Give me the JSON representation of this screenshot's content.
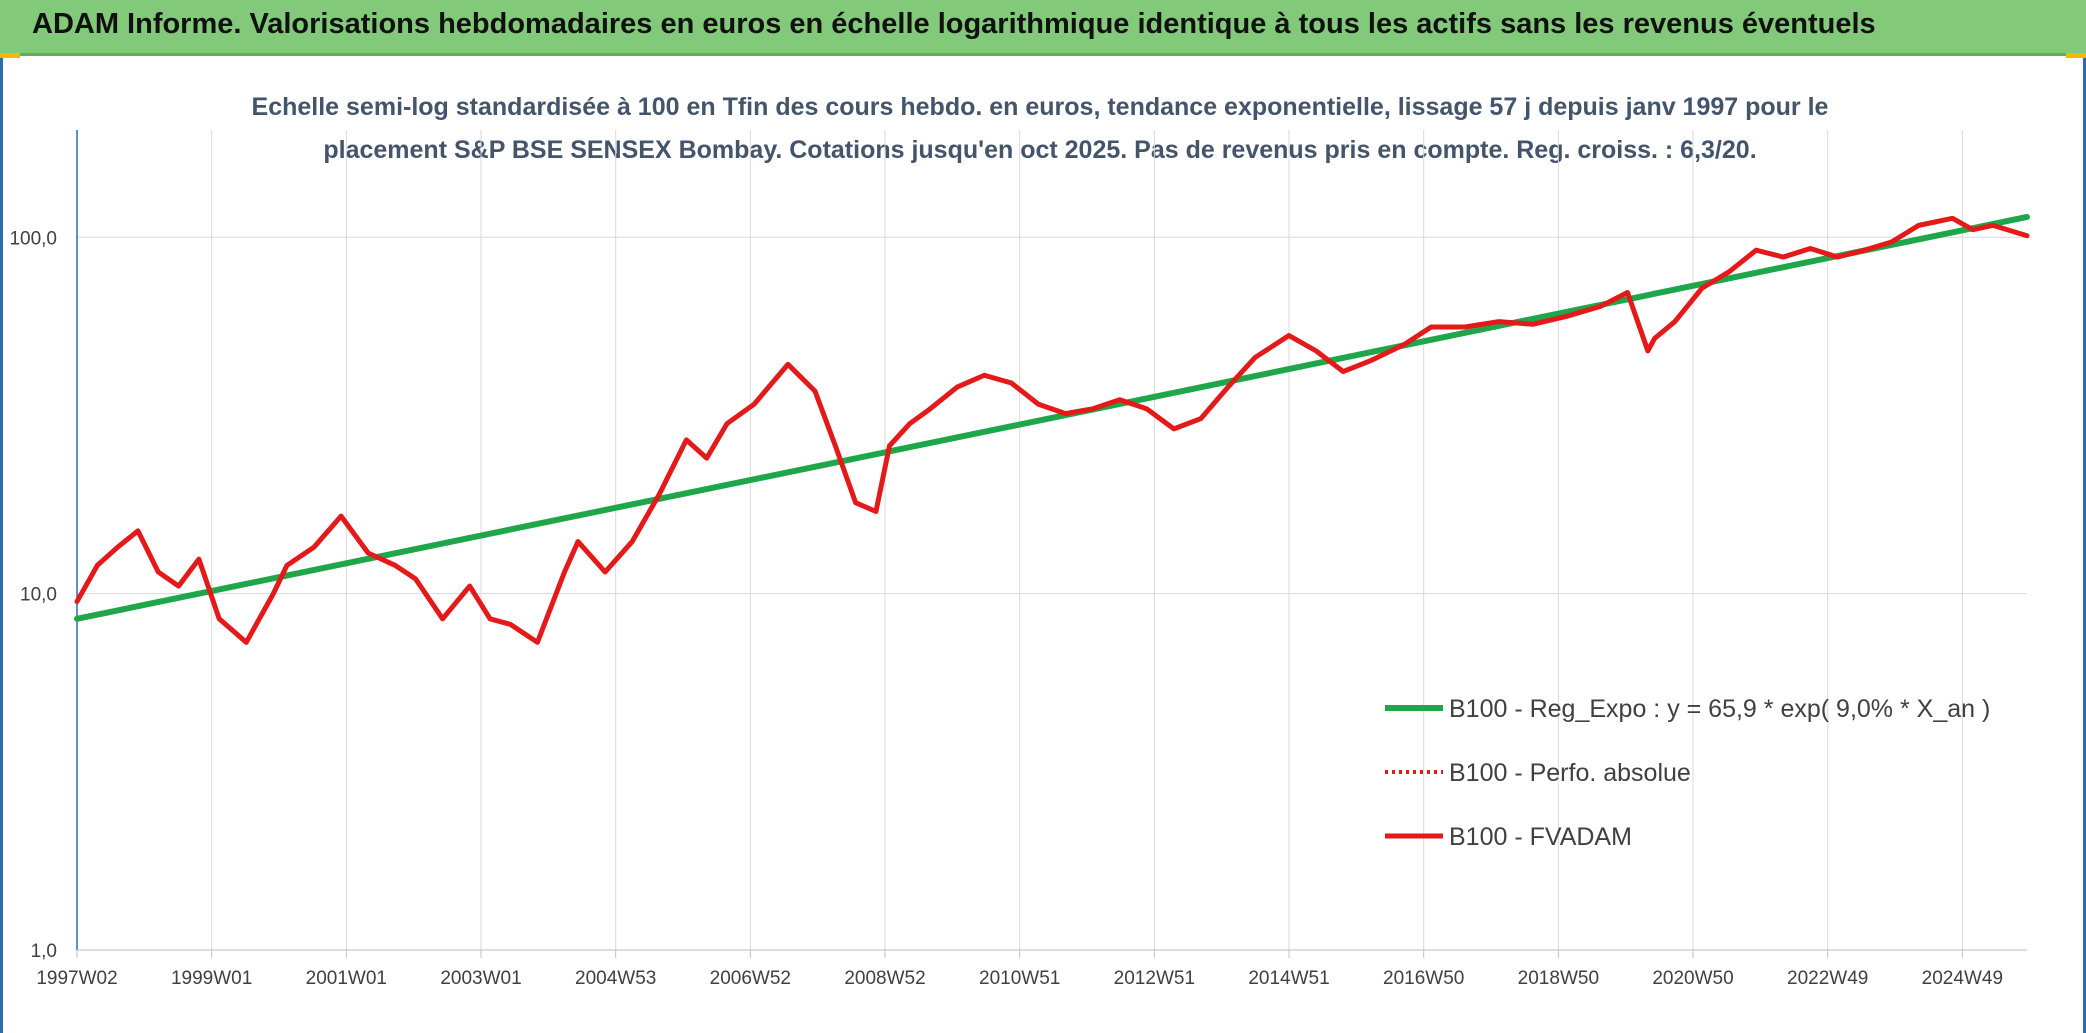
{
  "header": {
    "title": "ADAM Informe. Valorisations hebdomadaires en euros en échelle logarithmique identique à tous les actifs sans les revenus éventuels"
  },
  "colors": {
    "header_bg": "#82c97a",
    "trend": "#1fa64a",
    "perf": "#e41a1a",
    "fvadam": "#e41a1a",
    "grid": "#d9d9d9",
    "subtitle": "#44546a"
  },
  "chart_data": {
    "type": "line",
    "subtitle": [
      "Echelle semi-log standardisée à 100 en Tfin des cours hebdo. en euros, tendance exponentielle, lissage 57 j depuis janv 1997 pour le",
      "placement S&P BSE SENSEX Bombay. Cotations jusqu'en oct 2025. Pas de revenus pris en compte. Reg. croiss. : 6,3/20."
    ],
    "y_scale": "log",
    "ylim": [
      1,
      200
    ],
    "y_ticks": [
      "1,0",
      "10,0",
      "100,0"
    ],
    "x_ticks": [
      "1997W02",
      "1999W01",
      "2001W01",
      "2003W01",
      "2004W53",
      "2006W52",
      "2008W52",
      "2010W51",
      "2012W51",
      "2014W51",
      "2016W50",
      "2018W50",
      "2020W50",
      "2022W49",
      "2024W49"
    ],
    "x_range_years": [
      1997.0,
      2025.8
    ],
    "grid": true,
    "legend_position": "bottom-right",
    "series": [
      {
        "name": "B100 - Reg_Expo : y = 65,9 * exp( 9,0% *  X_an )",
        "style": "solid-green",
        "x": [
          1997.0,
          2025.8
        ],
        "y": [
          8.5,
          114
        ]
      },
      {
        "name": "B100 - Perfo. absolue",
        "style": "dotted-red",
        "x": [],
        "y": []
      },
      {
        "name": "B100 - FVADAM",
        "style": "solid-red",
        "x": [
          1997.0,
          1997.3,
          1997.6,
          1997.9,
          1998.2,
          1998.5,
          1998.8,
          1999.1,
          1999.5,
          1999.9,
          2000.1,
          2000.5,
          2000.9,
          2001.3,
          2001.7,
          2002.0,
          2002.4,
          2002.8,
          2003.1,
          2003.4,
          2003.8,
          2004.2,
          2004.4,
          2004.8,
          2005.2,
          2005.6,
          2006.0,
          2006.3,
          2006.6,
          2007.0,
          2007.5,
          2007.9,
          2008.2,
          2008.5,
          2008.8,
          2009.0,
          2009.3,
          2009.6,
          2010.0,
          2010.4,
          2010.8,
          2011.2,
          2011.6,
          2012.0,
          2012.4,
          2012.8,
          2013.2,
          2013.6,
          2014.0,
          2014.4,
          2014.9,
          2015.3,
          2015.7,
          2016.1,
          2016.6,
          2017.0,
          2017.5,
          2018.0,
          2018.5,
          2019.0,
          2019.5,
          2019.9,
          2020.2,
          2020.3,
          2020.6,
          2021.0,
          2021.4,
          2021.8,
          2022.2,
          2022.6,
          2023.0,
          2023.4,
          2023.8,
          2024.2,
          2024.7,
          2025.0,
          2025.3,
          2025.8
        ],
        "y": [
          9.5,
          12,
          13.5,
          15,
          11.5,
          10.5,
          12.5,
          8.5,
          7.3,
          10,
          12,
          13.5,
          16.5,
          13,
          12,
          11,
          8.5,
          10.5,
          8.5,
          8.2,
          7.3,
          11.5,
          14,
          11.5,
          14,
          19,
          27,
          24,
          30,
          34,
          44,
          37,
          26,
          18,
          17,
          26,
          30,
          33,
          38,
          41,
          39,
          34,
          32,
          33,
          35,
          33,
          29,
          31,
          38,
          46,
          53,
          48,
          42,
          45,
          50,
          56,
          56,
          58,
          57,
          60,
          64,
          70,
          48,
          52,
          58,
          72,
          80,
          92,
          88,
          93,
          88,
          92,
          97,
          108,
          113,
          105,
          108,
          101
        ]
      }
    ]
  }
}
